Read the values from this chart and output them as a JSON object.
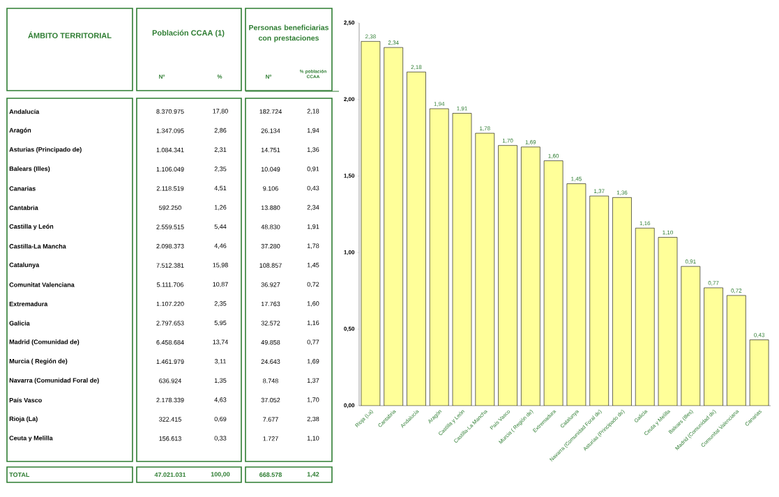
{
  "chart_data": [
    {
      "type": "other",
      "annotations": [
        "ÁMBITO TERRITORIAL",
        "Población CCAA (1)",
        "Personas beneficiarias con prestaciones",
        "Nº",
        "%",
        "Nº",
        "% población CCAA",
        "Andalucía",
        "8.370.975",
        "17,80",
        "182.724",
        "2,18",
        "Aragón",
        "1.347.095",
        "2,86",
        "26.134",
        "1,94",
        "Asturias (Principado de)",
        "1.084.341",
        "2,31",
        "14.751",
        "1,36",
        "Balears (Illes)",
        "1.106.049",
        "2,35",
        "10.049",
        "0,91",
        "Canarias",
        "2.118.519",
        "4,51",
        "9.106",
        "0,43",
        "Cantabria",
        "592.250",
        "1,26",
        "13.880",
        "2,34",
        "Castilla y León",
        "2.559.515",
        "5,44",
        "48.830",
        "1,91",
        "Castilla-La Mancha",
        "2.098.373",
        "4,46",
        "37.280",
        "1,78",
        "Catalunya",
        "7.512.381",
        "15,98",
        "108.857",
        "1,45",
        "Comunitat Valenciana",
        "5.111.706",
        "10,87",
        "36.927",
        "0,72",
        "Extremadura",
        "1.107.220",
        "2,35",
        "17.763",
        "1,60",
        "Galicia",
        "2.797.653",
        "5,95",
        "32.572",
        "1,16",
        "Madrid (Comunidad de)",
        "6.458.684",
        "13,74",
        "49.858",
        "0,77",
        "Murcia ( Región de)",
        "1.461.979",
        "3,11",
        "24.643",
        "1,69",
        "Navarra (Comunidad Foral de)",
        "636.924",
        "1,35",
        "8.748",
        "1,37",
        "País Vasco",
        "2.178.339",
        "4,63",
        "37.052",
        "1,70",
        "Rioja (La)",
        "322.415",
        "0,69",
        "7.677",
        "2,38",
        "Ceuta y Melilla",
        "156.613",
        "0,33",
        "1.727",
        "1,10",
        "TOTAL",
        "47.021.031",
        "100,00",
        "668.578",
        "1,42"
      ]
    },
    {
      "type": "bar",
      "categories": [
        "Rioja (La)",
        "Cantabria",
        "Andalucía",
        "Aragón",
        "Castilla y León",
        "Castilla-La Mancha",
        "País Vasco",
        "Murcia ( Región de)",
        "Extremadura",
        "Catalunya",
        "Navarra (Comunidad Foral de)",
        "Asturias (Principado de)",
        "Galicia",
        "Ceuta y Melilla",
        "Balears (Illes)",
        "Madrid (Comunidad de)",
        "Comunitat Valenciana",
        "Canarias"
      ],
      "values": [
        2.38,
        2.34,
        2.18,
        1.94,
        1.91,
        1.78,
        1.7,
        1.69,
        1.6,
        1.45,
        1.37,
        1.36,
        1.16,
        1.1,
        0.91,
        0.77,
        0.72,
        0.43
      ],
      "value_labels": [
        "2,38",
        "2,34",
        "2,18",
        "1,94",
        "1,91",
        "1,78",
        "1,70",
        "1,69",
        "1,60",
        "1,45",
        "1,37",
        "1,36",
        "1,16",
        "1,10",
        "0,91",
        "0,77",
        "0,72",
        "0,43"
      ],
      "color": "#ffff99",
      "ylim": [
        0,
        2.5
      ],
      "yticks": [
        {
          "value": 0,
          "label": "0,00"
        },
        {
          "value": 0.5,
          "label": "0,50"
        },
        {
          "value": 1,
          "label": "1,00"
        },
        {
          "value": 1.5,
          "label": "1,50"
        },
        {
          "value": 2,
          "label": "2,00"
        },
        {
          "value": 2.5,
          "label": "2,50"
        }
      ]
    }
  ]
}
